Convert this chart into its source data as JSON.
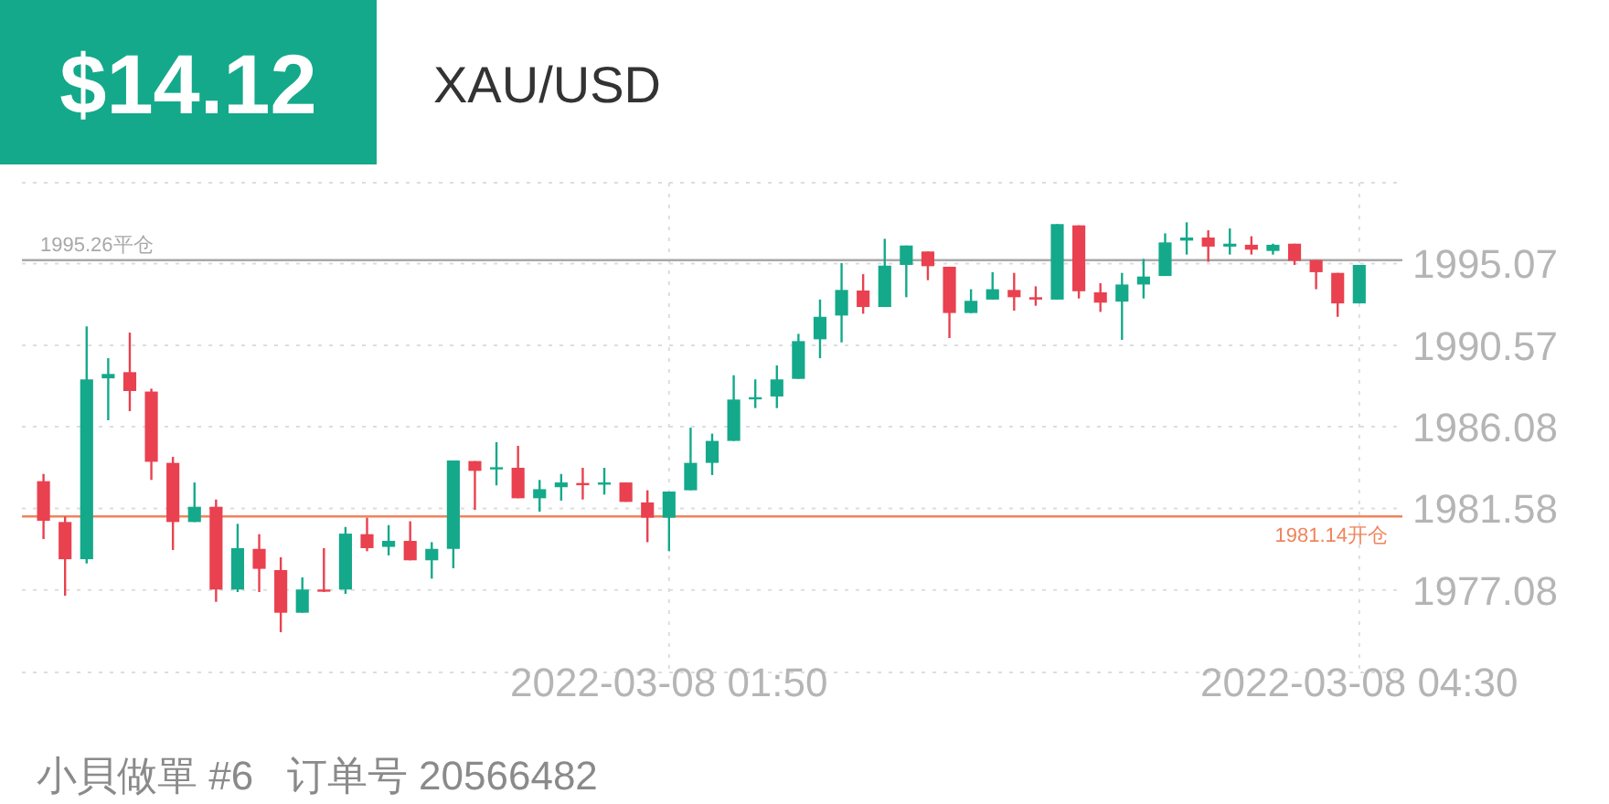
{
  "chart_data": {
    "type": "candlestick",
    "title": "XAU/USD",
    "annotations": [
      "$14.12",
      "小貝做單 #6   订单号 20566482"
    ],
    "x": [
      "2022-03-07T23:25",
      "2022-03-07T23:30",
      "2022-03-07T23:35",
      "2022-03-07T23:40",
      "2022-03-07T23:45",
      "2022-03-07T23:50",
      "2022-03-07T23:55",
      "2022-03-08T00:00",
      "2022-03-08T00:05",
      "2022-03-08T00:10",
      "2022-03-08T00:15",
      "2022-03-08T00:20",
      "2022-03-08T00:25",
      "2022-03-08T00:30",
      "2022-03-08T00:35",
      "2022-03-08T00:40",
      "2022-03-08T00:45",
      "2022-03-08T00:50",
      "2022-03-08T00:55",
      "2022-03-08T01:00",
      "2022-03-08T01:05",
      "2022-03-08T01:10",
      "2022-03-08T01:15",
      "2022-03-08T01:20",
      "2022-03-08T01:25",
      "2022-03-08T01:30",
      "2022-03-08T01:35",
      "2022-03-08T01:40",
      "2022-03-08T01:45",
      "2022-03-08T01:50",
      "2022-03-08T01:55",
      "2022-03-08T02:00",
      "2022-03-08T02:05",
      "2022-03-08T02:10",
      "2022-03-08T02:15",
      "2022-03-08T02:20",
      "2022-03-08T02:25",
      "2022-03-08T02:30",
      "2022-03-08T02:35",
      "2022-03-08T02:40",
      "2022-03-08T02:45",
      "2022-03-08T02:50",
      "2022-03-08T02:55",
      "2022-03-08T03:00",
      "2022-03-08T03:05",
      "2022-03-08T03:10",
      "2022-03-08T03:15",
      "2022-03-08T03:20",
      "2022-03-08T03:25",
      "2022-03-08T03:30",
      "2022-03-08T03:35",
      "2022-03-08T03:40",
      "2022-03-08T03:45",
      "2022-03-08T03:50",
      "2022-03-08T03:55",
      "2022-03-08T04:00",
      "2022-03-08T04:05",
      "2022-03-08T04:10",
      "2022-03-08T04:15",
      "2022-03-08T04:20",
      "2022-03-08T04:25",
      "2022-03-08T04:30"
    ],
    "ohlc": [
      [
        1983.08,
        1983.48,
        1979.89,
        1980.9
      ],
      [
        1980.83,
        1981.13,
        1976.77,
        1978.78
      ],
      [
        1978.78,
        1991.61,
        1978.55,
        1988.69
      ],
      [
        1988.75,
        1989.86,
        1986.44,
        1988.99
      ],
      [
        1989.09,
        1991.27,
        1986.94,
        1988.05
      ],
      [
        1988.02,
        1988.18,
        1983.15,
        1984.15
      ],
      [
        1984.09,
        1984.42,
        1979.29,
        1980.83
      ],
      [
        1980.83,
        1983.01,
        1980.83,
        1981.67
      ],
      [
        1981.67,
        1982.07,
        1976.43,
        1977.11
      ],
      [
        1977.11,
        1980.73,
        1976.97,
        1979.39
      ],
      [
        1979.35,
        1980.16,
        1976.97,
        1978.25
      ],
      [
        1978.18,
        1978.89,
        1974.76,
        1975.83
      ],
      [
        1975.83,
        1977.78,
        1975.83,
        1977.11
      ],
      [
        1977.11,
        1979.39,
        1976.97,
        1977.07
      ],
      [
        1977.11,
        1980.56,
        1976.87,
        1980.19
      ],
      [
        1980.16,
        1981.07,
        1979.22,
        1979.39
      ],
      [
        1979.46,
        1980.66,
        1978.99,
        1979.79
      ],
      [
        1979.79,
        1980.87,
        1978.72,
        1978.72
      ],
      [
        1978.72,
        1979.72,
        1977.71,
        1979.35
      ],
      [
        1979.35,
        1984.22,
        1978.28,
        1984.22
      ],
      [
        1984.19,
        1984.19,
        1981.5,
        1983.65
      ],
      [
        1983.75,
        1985.23,
        1982.85,
        1983.85
      ],
      [
        1983.82,
        1985.03,
        1982.14,
        1982.14
      ],
      [
        1982.14,
        1983.15,
        1981.4,
        1982.64
      ],
      [
        1982.75,
        1983.48,
        1982.01,
        1983.01
      ],
      [
        1982.98,
        1983.82,
        1982.07,
        1982.95
      ],
      [
        1982.95,
        1983.82,
        1982.34,
        1983.01
      ],
      [
        1983.01,
        1983.01,
        1981.94,
        1981.94
      ],
      [
        1981.91,
        1982.58,
        1979.72,
        1981.07
      ],
      [
        1981.07,
        1982.51,
        1979.22,
        1982.51
      ],
      [
        1982.58,
        1986.03,
        1982.58,
        1984.09
      ],
      [
        1984.09,
        1985.7,
        1983.42,
        1985.3
      ],
      [
        1985.3,
        1988.92,
        1985.3,
        1987.58
      ],
      [
        1987.61,
        1988.69,
        1987.11,
        1987.71
      ],
      [
        1987.75,
        1989.46,
        1987.11,
        1988.69
      ],
      [
        1988.72,
        1991.2,
        1988.72,
        1990.8
      ],
      [
        1990.9,
        1993.09,
        1989.86,
        1992.14
      ],
      [
        1992.21,
        1995.1,
        1990.73,
        1993.62
      ],
      [
        1993.59,
        1994.49,
        1992.31,
        1992.68
      ],
      [
        1992.68,
        1996.44,
        1992.68,
        1994.96
      ],
      [
        1995.0,
        1996.07,
        1993.22,
        1996.07
      ],
      [
        1995.74,
        1995.74,
        1994.16,
        1994.93
      ],
      [
        1994.9,
        1994.9,
        1990.97,
        1992.35
      ],
      [
        1992.35,
        1993.66,
        1992.35,
        1993.02
      ],
      [
        1993.09,
        1994.6,
        1993.09,
        1993.66
      ],
      [
        1993.62,
        1994.56,
        1992.48,
        1993.22
      ],
      [
        1993.22,
        1993.82,
        1992.75,
        1993.09
      ],
      [
        1993.09,
        1997.25,
        1993.09,
        1997.25
      ],
      [
        1997.18,
        1997.18,
        1993.15,
        1993.55
      ],
      [
        1993.49,
        1993.99,
        1992.41,
        1992.92
      ],
      [
        1992.98,
        1994.56,
        1990.87,
        1993.92
      ],
      [
        1993.92,
        1995.33,
        1993.15,
        1994.36
      ],
      [
        1994.39,
        1996.74,
        1994.39,
        1996.24
      ],
      [
        1996.34,
        1997.35,
        1995.57,
        1996.51
      ],
      [
        1996.51,
        1996.91,
        1995.17,
        1996.01
      ],
      [
        1996.01,
        1997.01,
        1995.57,
        1996.17
      ],
      [
        1996.11,
        1996.58,
        1995.57,
        1995.84
      ],
      [
        1995.77,
        1996.17,
        1995.57,
        1996.11
      ],
      [
        1996.17,
        1996.17,
        1995.0,
        1995.23
      ],
      [
        1995.27,
        1995.27,
        1993.66,
        1994.6
      ],
      [
        1994.56,
        1994.56,
        1992.14,
        1992.88
      ],
      [
        1992.88,
        1995.0,
        1992.88,
        1995.0
      ]
    ],
    "xlim": [
      "2022-03-07T23:20",
      "2022-03-08T04:40"
    ],
    "xticks": [
      {
        "value": "2022-03-08T01:50",
        "label": "2022-03-08 01:50"
      },
      {
        "value": "2022-03-08T04:30",
        "label": "2022-03-08 04:30"
      }
    ],
    "ylim": [
      1972.54,
      1999.53
    ],
    "yticks": [
      1977.08,
      1981.58,
      1986.08,
      1990.57,
      1995.07
    ],
    "grid": true,
    "ref_lines": [
      {
        "axis": "y",
        "value": 1995.26,
        "label": "1995.26平仓",
        "color": "#a8a8a8"
      },
      {
        "axis": "y",
        "value": 1981.14,
        "label": "1981.14开仓",
        "color": "#f0845c"
      }
    ]
  }
}
